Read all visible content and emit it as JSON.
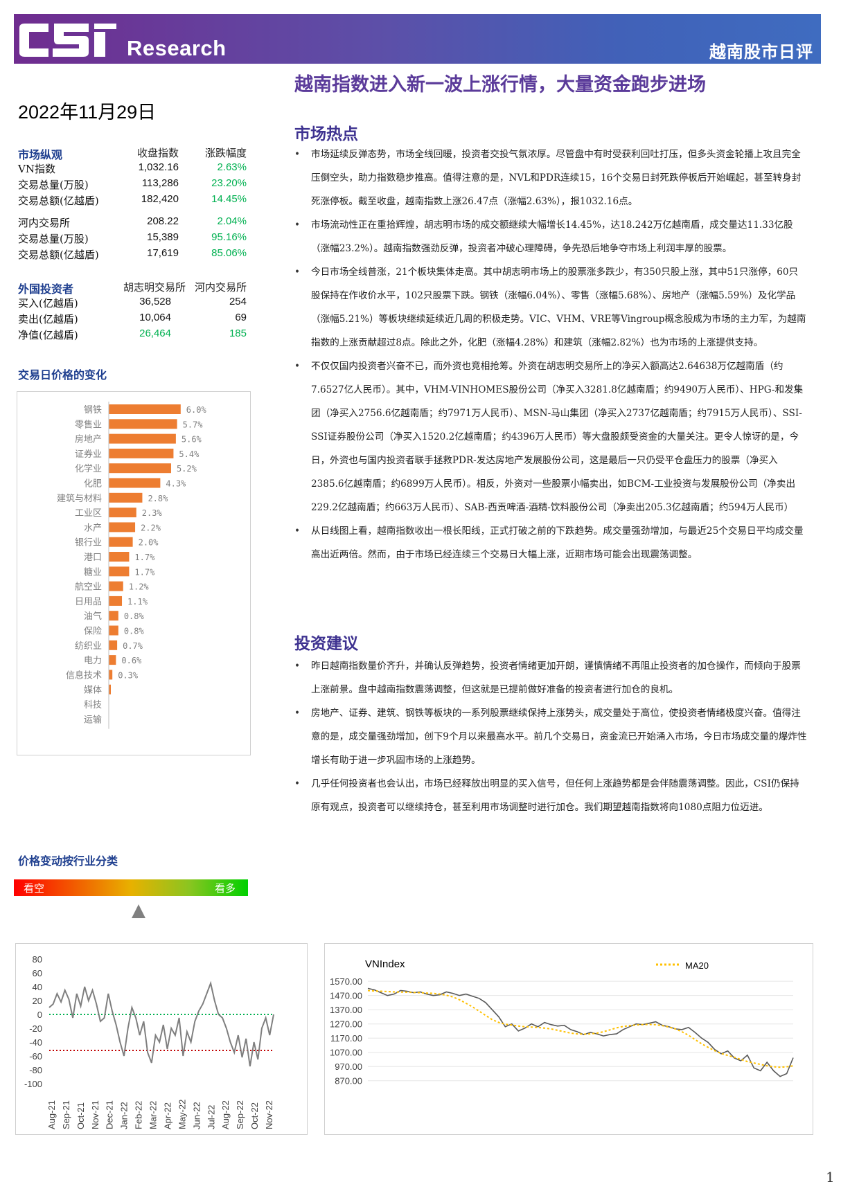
{
  "header": {
    "logo_text": "CSI",
    "brand": "Research",
    "report_type": "越南股市日评",
    "headline": "越南指数进入新一波上涨行情，大量资金跑步进场",
    "date": "2022年11月29日"
  },
  "market_overview": {
    "title": "市场纵观",
    "col1": "收盘指数",
    "col2": "涨跌幅度",
    "rows": [
      {
        "label": "VN指数",
        "value": "1,032.16",
        "change": "2.63%"
      },
      {
        "label": "交易总量(万股)",
        "value": "113,286",
        "change": "23.20%"
      },
      {
        "label": "交易总额(亿越盾)",
        "value": "182,420",
        "change": "14.45%"
      },
      {
        "label": "河内交易所",
        "value": "208.22",
        "change": "2.04%"
      },
      {
        "label": "交易总量(万股)",
        "value": "15,389",
        "change": "95.16%"
      },
      {
        "label": "交易总额(亿越盾)",
        "value": "17,619",
        "change": "85.06%"
      }
    ]
  },
  "foreign_investors": {
    "title": "外国投资者",
    "col1": "胡志明交易所",
    "col2": "河内交易所",
    "rows": [
      {
        "label": "买入(亿越盾)",
        "hose": "36,528",
        "hnx": "254"
      },
      {
        "label": "卖出(亿越盾)",
        "hose": "10,064",
        "hnx": "69"
      },
      {
        "label": "净值(亿越盾)",
        "hose": "26,464",
        "hnx": "185"
      }
    ]
  },
  "bar_section_title": "交易日价格的变化",
  "sector_section_title": "价格变动按行业分类",
  "sentiment": {
    "left": "看空",
    "right": "看多"
  },
  "hotspot": {
    "title": "市场热点",
    "bullets": [
      "市场延续反弹态势，市场全线回暖，投资者交投气氛浓厚。尽管盘中有时受获利回吐打压，但多头资金轮播上攻且完全压倒空头，助力指数稳步推高。值得注意的是，NVL和PDR连续15，16个交易日封死跌停板后开始崛起，甚至转身封死涨停板。截至收盘，越南指数上涨26.47点（涨幅2.63%），报1032.16点。",
      "市场流动性正在重拾辉煌，胡志明市场的成交额继续大幅增长14.45%，达18.242万亿越南盾，成交量达11.33亿股（涨幅23.2%）。越南指数强劲反弹，投资者冲破心理障碍，争先恐后地争夺市场上利润丰厚的股票。",
      "今日市场全线普涨，21个板块集体走高。其中胡志明市场上的股票涨多跌少，有350只股上涨，其中51只涨停，60只股保持在作收价水平，102只股票下跌。钢铁（涨幅6.04%）、零售（涨幅5.68%）、房地产（涨幅5.59%）及化学品（涨幅5.21%）等板块继续延续近几周的积极走势。VIC、VHM、VRE等Vingroup概念股成为市场的主力军，为越南指数的上涨贡献超过8点。除此之外，化肥（涨幅4.28%）和建筑（涨幅2.82%）也为市场的上涨提供支持。",
      "不仅仅国内投资者兴奋不已，而外资也竞相抢筹。外资在胡志明交易所上的净买入额高达2.64638万亿越南盾（约7.6527亿人民币）。其中，VHM-VINHOMES股份公司（净买入3281.8亿越南盾；约9490万人民币）、HPG-和发集团（净买入2756.6亿越南盾；约7971万人民币）、MSN-马山集团（净买入2737亿越南盾；约7915万人民币）、SSI-SSI证券股份公司（净买入1520.2亿越南盾；约4396万人民币）等大盘股颇受资金的大量关注。更令人惊讶的是，今日，外资也与国内投资者联手拯救PDR-发达房地产发展股份公司，这是最后一只仍受平仓盘压力的股票（净买入2385.6亿越南盾；约6899万人民币）。相反，外资对一些股票小幅卖出，如BCM-工业投资与发展股份公司（净卖出229.2亿越南盾；约663万人民币）、SAB-西贡啤酒-酒精-饮料股份公司（净卖出205.3亿越南盾；约594万人民币）",
      "从日线图上看，越南指数收出一根长阳线，正式打破之前的下跌趋势。成交量强劲增加，与最近25个交易日平均成交量高出近两倍。然而，由于市场已经连续三个交易日大幅上涨，近期市场可能会出现震荡调整。"
    ]
  },
  "advice": {
    "title": "投资建议",
    "bullets": [
      "昨日越南指数量价齐升，并确认反弹趋势，投资者情绪更加开朗，谨慎情绪不再阻止投资者的加仓操作，而倾向于股票上涨前景。盘中越南指数震荡调整，但这就是已提前做好准备的投资者进行加仓的良机。",
      "房地产、证券、建筑、钢铁等板块的一系列股票继续保持上涨势头，成交量处于高位，使投资者情绪极度兴奋。值得注意的是，成交量强劲增加，创下9个月以来最高水平。前几个交易日，资金流已开始涌入市场，今日市场成交量的爆炸性增长有助于进一步巩固市场的上涨趋势。",
      "几乎任何投资者也会认出，市场已经释放出明显的买入信号，但任何上涨趋势都是会伴随震荡调整。因此，CSI仍保持原有观点，投资者可以继续持仓，甚至利用市场调整时进行加仓。我们期望越南指数将向1080点阻力位迈进。"
    ]
  },
  "chart_data": [
    {
      "type": "bar",
      "orientation": "horizontal",
      "categories": [
        "钢铁",
        "零售业",
        "房地产",
        "证券业",
        "化学业",
        "化肥",
        "建筑与材料",
        "工业区",
        "水产",
        "银行业",
        "港口",
        "糖业",
        "航空业",
        "日用品",
        "油气",
        "保险",
        "纺织业",
        "电力",
        "信息技术",
        "媒体",
        "科技",
        "运输"
      ],
      "labels": [
        "6.0%",
        "5.7%",
        "5.6%",
        "5.4%",
        "5.2%",
        "4.3%",
        "2.8%",
        "2.3%",
        "2.2%",
        "2.0%",
        "1.7%",
        "1.7%",
        "1.2%",
        "1.1%",
        "0.8%",
        "0.8%",
        "0.7%",
        "0.6%",
        "0.3%",
        "",
        "",
        ""
      ],
      "values": [
        6.0,
        5.7,
        5.6,
        5.4,
        5.2,
        4.3,
        2.8,
        2.3,
        2.2,
        2.0,
        1.7,
        1.7,
        1.2,
        1.1,
        0.8,
        0.8,
        0.7,
        0.6,
        0.3,
        0.1,
        0.0,
        0.0
      ],
      "color": "#ed7d31"
    },
    {
      "type": "line",
      "y_ticks": [
        "80",
        "60",
        "40",
        "20",
        "0",
        "-20",
        "-40",
        "-60",
        "-80",
        "-100"
      ],
      "ylim": [
        -100,
        80
      ],
      "x_ticks": [
        "Aug-21",
        "Sep-21",
        "Oct-21",
        "Nov-21",
        "Dec-21",
        "Jan-22",
        "Feb-22",
        "Mar-22",
        "Apr-22",
        "May-22",
        "Jun-22",
        "Jul-22",
        "Aug-22",
        "Sep-22",
        "Oct-22",
        "Nov-22"
      ],
      "reference_lines": [
        {
          "value": 0,
          "color": "#00b050"
        },
        {
          "value": -52,
          "color": "#c00000"
        }
      ],
      "series_color": "#7f7f7f",
      "values": [
        10,
        15,
        30,
        18,
        35,
        22,
        -5,
        30,
        12,
        40,
        20,
        35,
        15,
        -10,
        -5,
        30,
        5,
        -15,
        -40,
        -60,
        -20,
        10,
        -5,
        -30,
        -10,
        -55,
        -70,
        -30,
        -40,
        -15,
        -50,
        -20,
        -30,
        -5,
        -60,
        -25,
        -40,
        -10,
        5,
        15,
        30,
        45,
        20,
        0,
        -5,
        -20,
        -40,
        -55,
        -30,
        -62,
        -35,
        -75,
        -40,
        -65,
        -20,
        -5,
        -30,
        0
      ]
    },
    {
      "type": "line",
      "title": "VNIndex",
      "legend": "MA20",
      "y_ticks": [
        "1570.00",
        "1470.00",
        "1370.00",
        "1270.00",
        "1170.00",
        "1070.00",
        "970.00",
        "870.00"
      ],
      "ylim": [
        820,
        1600
      ],
      "series": [
        {
          "name": "VNIndex",
          "color": "#595959",
          "values": [
            1520,
            1510,
            1490,
            1470,
            1480,
            1505,
            1500,
            1490,
            1495,
            1480,
            1470,
            1475,
            1495,
            1485,
            1470,
            1480,
            1465,
            1450,
            1420,
            1370,
            1320,
            1250,
            1270,
            1220,
            1240,
            1270,
            1250,
            1280,
            1265,
            1255,
            1260,
            1230,
            1215,
            1195,
            1210,
            1200,
            1185,
            1195,
            1200,
            1230,
            1250,
            1270,
            1265,
            1275,
            1285,
            1260,
            1250,
            1235,
            1230,
            1245,
            1210,
            1170,
            1140,
            1090,
            1060,
            1080,
            1030,
            1010,
            1050,
            960,
            940,
            1000,
            940,
            900,
            920,
            1032
          ]
        },
        {
          "name": "MA20",
          "color": "#ffc000",
          "values": [
            1505,
            1502,
            1500,
            1498,
            1495,
            1494,
            1493,
            1492,
            1490,
            1487,
            1485,
            1480,
            1472,
            1460,
            1440,
            1415,
            1390,
            1360,
            1330,
            1300,
            1280,
            1268,
            1262,
            1255,
            1250,
            1248,
            1245,
            1240,
            1235,
            1225,
            1215,
            1205,
            1200,
            1198,
            1200,
            1205,
            1215,
            1228,
            1242,
            1252,
            1258,
            1262,
            1265,
            1266,
            1264,
            1258,
            1248,
            1235,
            1215,
            1190,
            1160,
            1130,
            1105,
            1082,
            1062,
            1048,
            1035,
            1020,
            1005,
            995,
            985,
            975,
            968,
            965,
            968,
            975
          ]
        }
      ]
    }
  ],
  "page_number": "1"
}
